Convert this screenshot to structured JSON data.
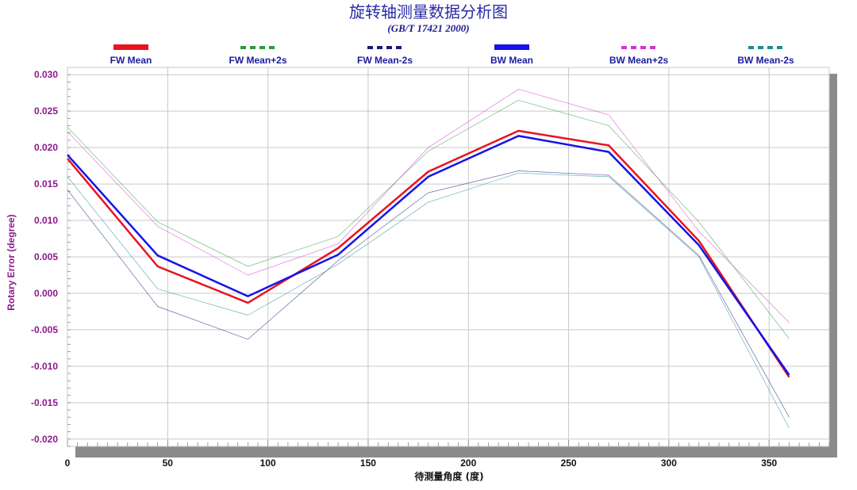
{
  "chart_data": {
    "type": "line",
    "title": "旋转轴测量数据分析图",
    "subtitle": "(GB/T 17421 2000)",
    "xlabel": "待测量角度 (度)",
    "ylabel": "Rotary Error (degree)",
    "xlim": [
      0,
      380
    ],
    "ylim": [
      -0.021,
      0.031
    ],
    "x_ticks": [
      0,
      50,
      100,
      150,
      200,
      250,
      300,
      350
    ],
    "y_ticks": [
      -0.02,
      -0.015,
      -0.01,
      -0.005,
      0.0,
      0.005,
      0.01,
      0.015,
      0.02,
      0.025,
      0.03
    ],
    "y_tick_labels": [
      "-0.020",
      "-0.015",
      "-0.010",
      "-0.005",
      "0.000",
      "0.005",
      "0.010",
      "0.015",
      "0.020",
      "0.025",
      "0.030"
    ],
    "x_tick_labels": [
      "0",
      "50",
      "100",
      "150",
      "200",
      "250",
      "300",
      "350"
    ],
    "grid": true,
    "legend_position": "top",
    "x": [
      0,
      45,
      90,
      135,
      180,
      225,
      270,
      315,
      360
    ],
    "series": [
      {
        "name": "FW Mean",
        "color": "#e8141e",
        "style": "solid",
        "width": 2.5,
        "values": [
          0.0185,
          0.0037,
          -0.0013,
          0.0062,
          0.0167,
          0.0223,
          0.0203,
          0.0072,
          -0.0115
        ]
      },
      {
        "name": "FW Mean+2s",
        "color": "#2e9b3a",
        "style": "dashed",
        "width": 0.7,
        "values": [
          0.0228,
          0.0098,
          0.0037,
          0.0078,
          0.0195,
          0.0265,
          0.023,
          0.0098,
          -0.0062
        ]
      },
      {
        "name": "FW Mean-2s",
        "color": "#1a1a7a",
        "style": "dashed",
        "width": 0.7,
        "values": [
          0.0142,
          -0.0018,
          -0.0063,
          0.0045,
          0.0138,
          0.0168,
          0.0162,
          0.0052,
          -0.017
        ]
      },
      {
        "name": "BW Mean",
        "color": "#1414e6",
        "style": "solid",
        "width": 2.5,
        "values": [
          0.019,
          0.0052,
          -0.0004,
          0.0053,
          0.016,
          0.0216,
          0.0194,
          0.0066,
          -0.0112
        ]
      },
      {
        "name": "BW Mean+2s",
        "color": "#d633d6",
        "style": "dashed",
        "width": 0.7,
        "values": [
          0.0222,
          0.0092,
          0.0025,
          0.0068,
          0.02,
          0.028,
          0.0245,
          0.0085,
          -0.004
        ]
      },
      {
        "name": "BW Mean-2s",
        "color": "#1e8c8c",
        "style": "dashed",
        "width": 0.7,
        "values": [
          0.016,
          0.0006,
          -0.003,
          0.004,
          0.0125,
          0.0165,
          0.016,
          0.005,
          -0.0185
        ]
      }
    ]
  }
}
